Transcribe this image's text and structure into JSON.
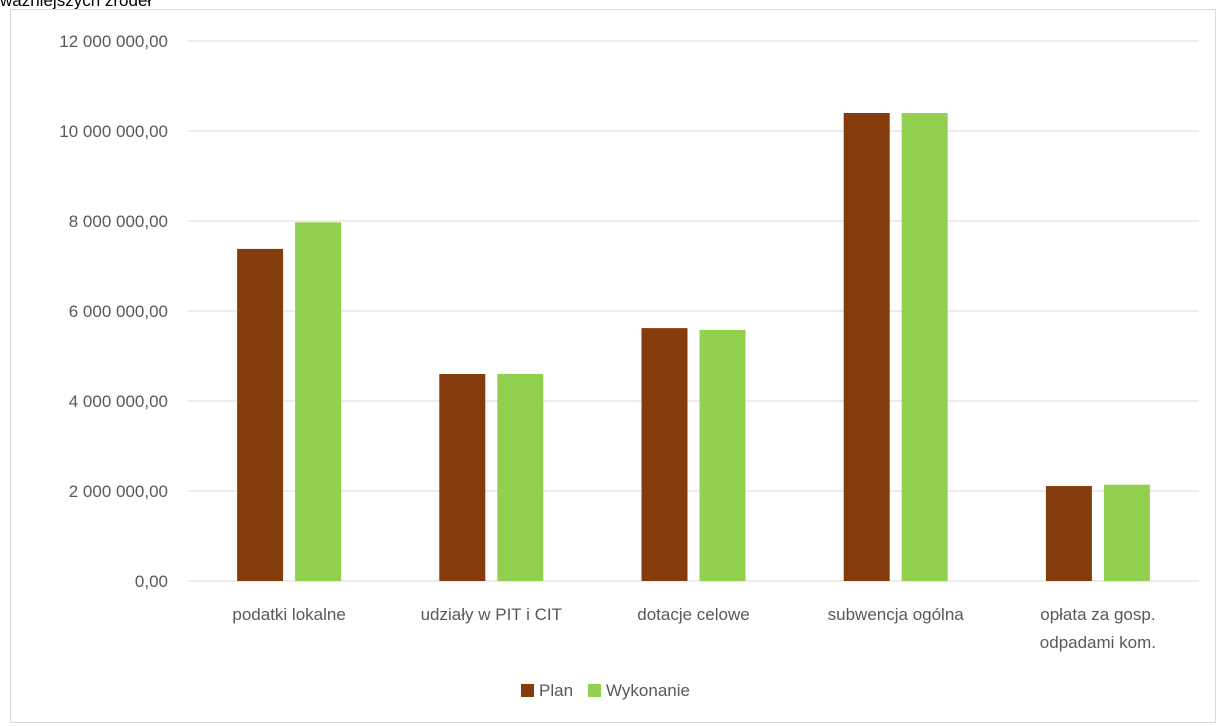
{
  "caption_fragment": "ważniejszych źródeł",
  "chart_data": {
    "type": "bar",
    "categories": [
      [
        "podatki lokalne"
      ],
      [
        "udziały w PIT i CIT"
      ],
      [
        "dotacje celowe"
      ],
      [
        "subwencja ogólna"
      ],
      [
        "opłata za gosp.",
        "odpadami kom."
      ]
    ],
    "series": [
      {
        "name": "Plan",
        "color": "#843c0c",
        "values": [
          7380000,
          4600000,
          5620000,
          10400000,
          2110000
        ]
      },
      {
        "name": "Wykonanie",
        "color": "#92d050",
        "values": [
          7970000,
          4600000,
          5580000,
          10400000,
          2140000
        ]
      }
    ],
    "ylim": [
      0,
      12000000
    ],
    "ytick_step": 2000000,
    "ytick_labels": [
      "0,00",
      "2 000 000,00",
      "4 000 000,00",
      "6 000 000,00",
      "8 000 000,00",
      "10 000 000,00",
      "12 000 000,00"
    ],
    "grid": true,
    "grid_color": "#d9d9d9",
    "legend_position": "bottom",
    "title": "",
    "xlabel": "",
    "ylabel": ""
  }
}
